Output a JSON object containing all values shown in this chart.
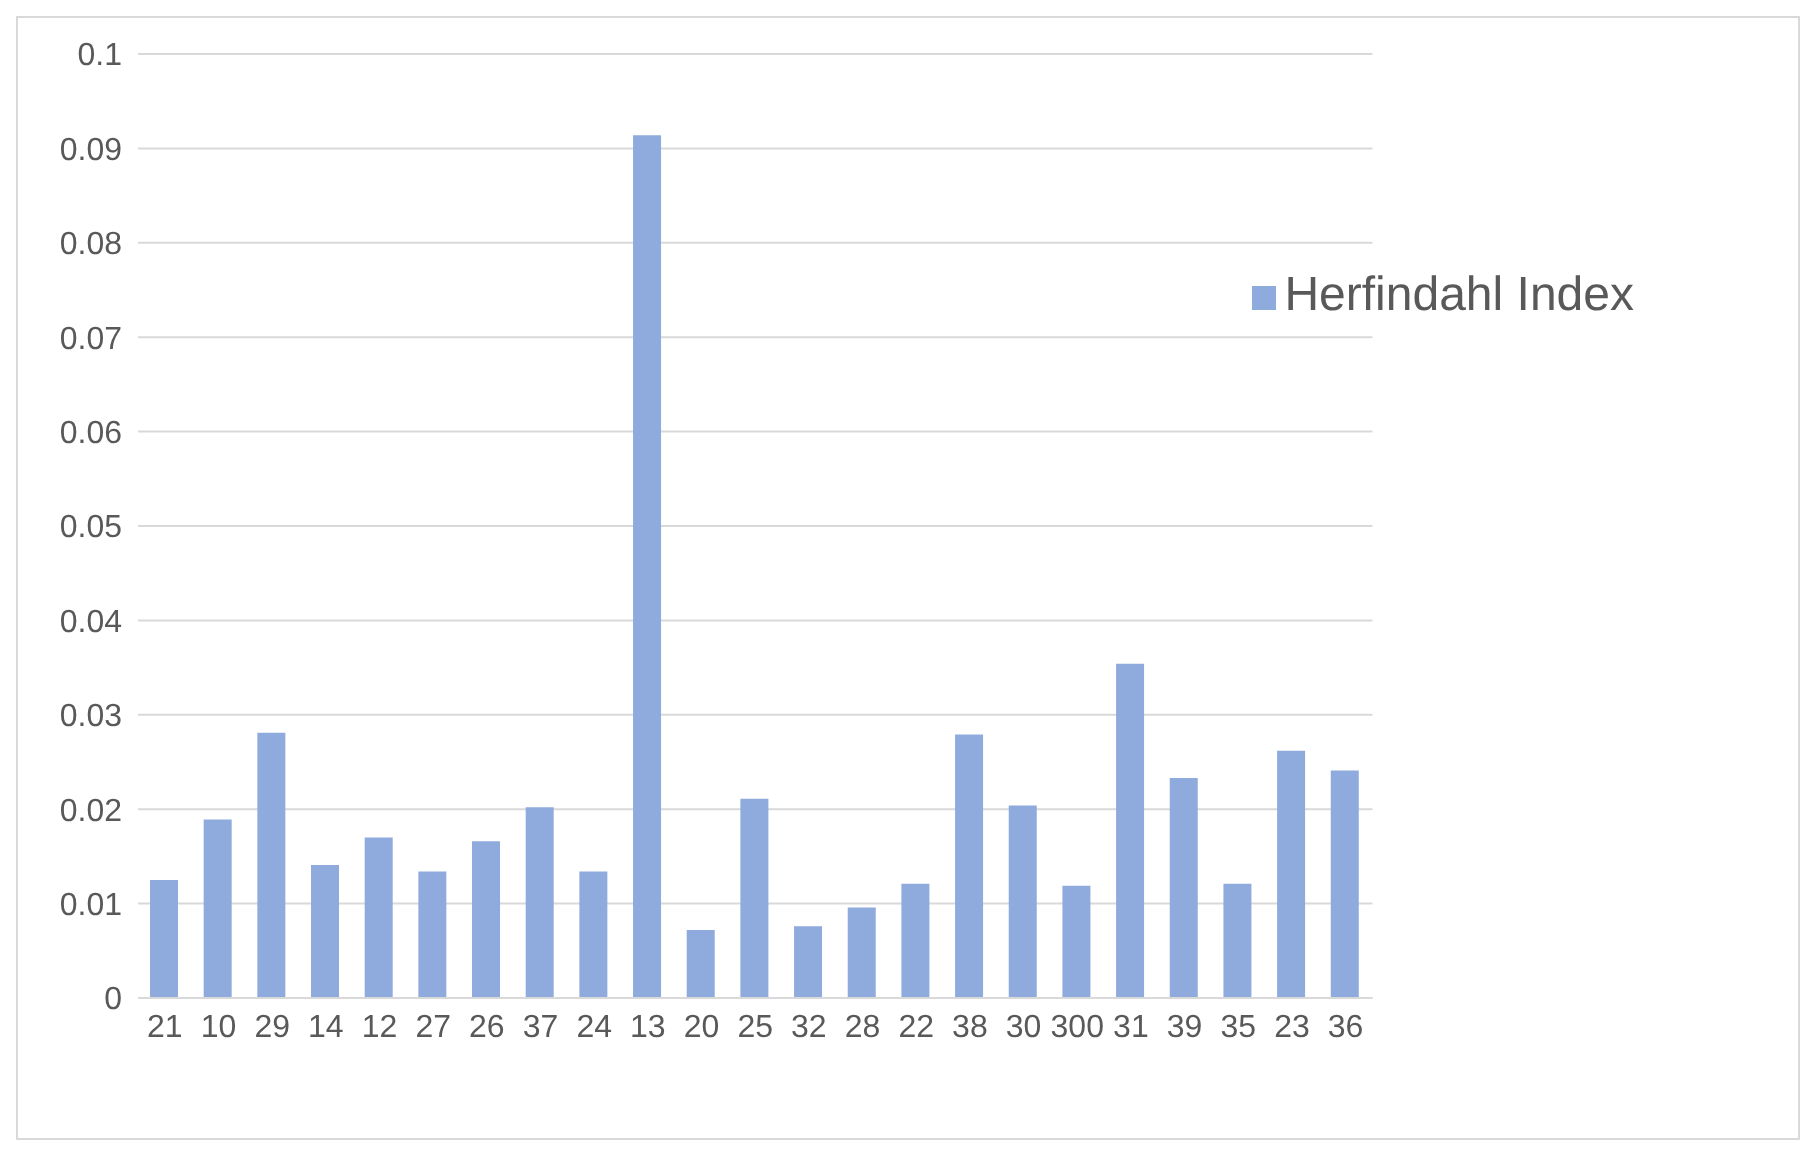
{
  "chart_data": {
    "type": "bar",
    "categories": [
      "21",
      "10",
      "29",
      "14",
      "12",
      "27",
      "26",
      "37",
      "24",
      "13",
      "20",
      "25",
      "32",
      "28",
      "22",
      "38",
      "30",
      "300",
      "31",
      "39",
      "35",
      "23",
      "36"
    ],
    "series": [
      {
        "name": "Herfindahl Index",
        "color": "#8faadc",
        "values": [
          0.0125,
          0.0189,
          0.0281,
          0.0141,
          0.017,
          0.0134,
          0.0166,
          0.0202,
          0.0134,
          0.0914,
          0.0072,
          0.0211,
          0.0076,
          0.0096,
          0.0121,
          0.0279,
          0.0204,
          0.0119,
          0.0354,
          0.0233,
          0.0121,
          0.0262,
          0.0241
        ]
      }
    ],
    "ylim": [
      0,
      0.1
    ],
    "yticks": [
      0,
      0.01,
      0.02,
      0.03,
      0.04,
      0.05,
      0.06,
      0.07,
      0.08,
      0.09,
      0.1
    ],
    "grid": "y",
    "legend": "top right"
  }
}
